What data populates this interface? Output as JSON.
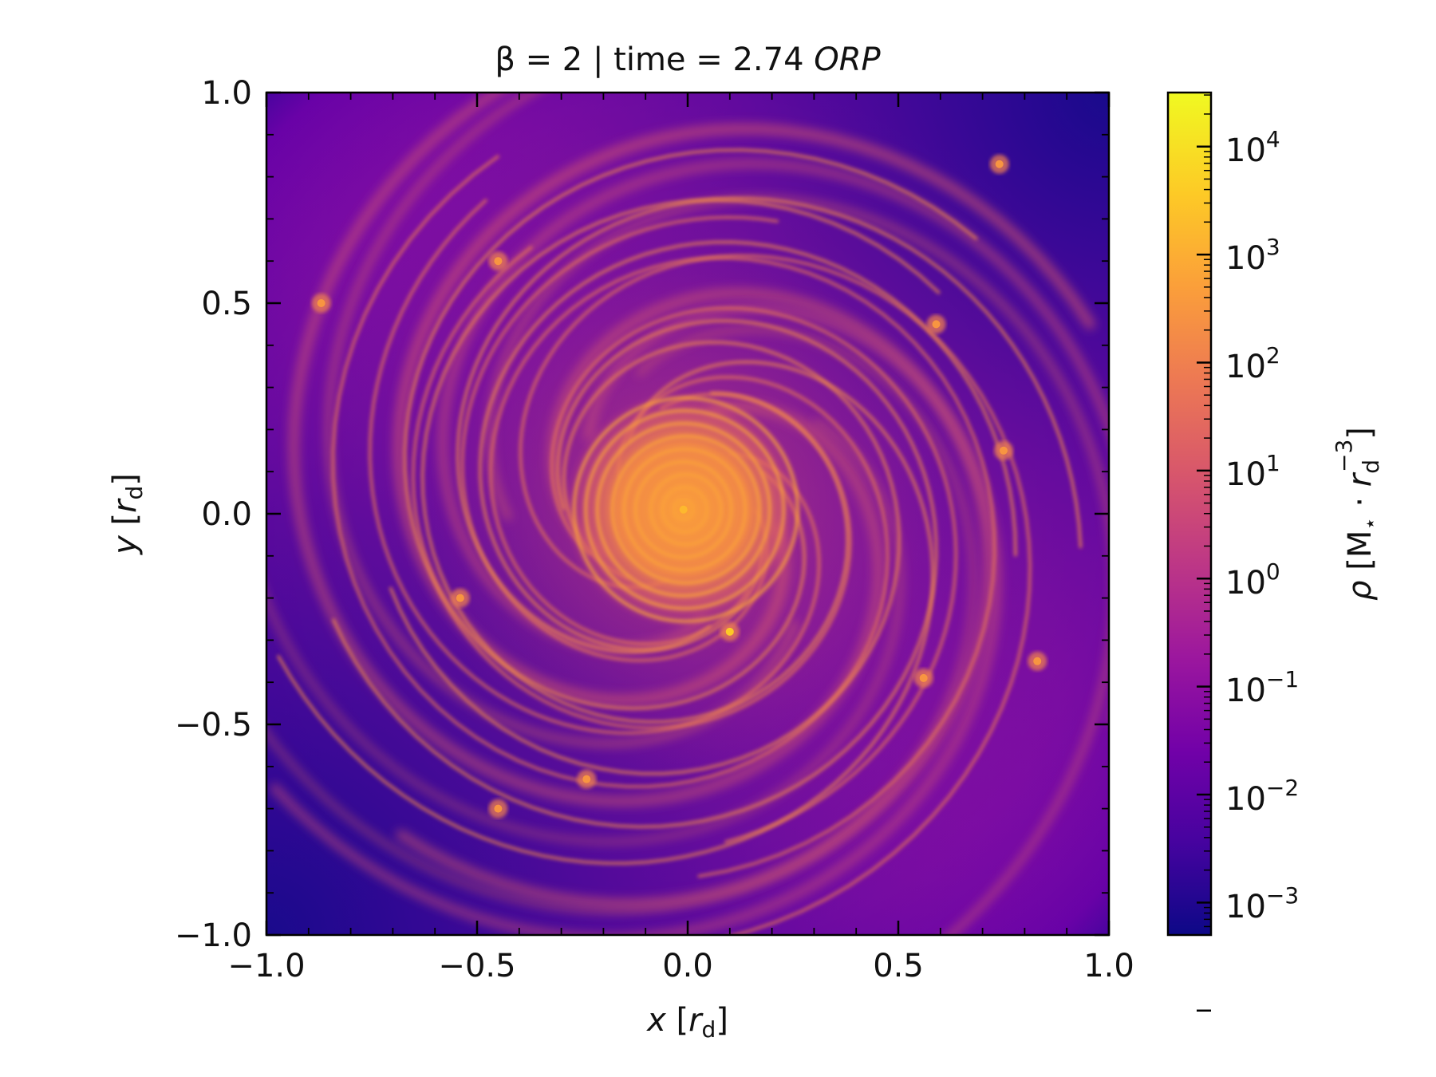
{
  "chart_data": {
    "type": "heatmap",
    "title": {
      "prefix": "β = 2 | time = 2.74 ",
      "italic": "ORP"
    },
    "xlabel": {
      "var": "x",
      "unit_open": " [",
      "unit_var": "r",
      "unit_sub": "d",
      "unit_close": "]"
    },
    "ylabel": {
      "var": "y",
      "unit_open": " [",
      "unit_var": "r",
      "unit_sub": "d",
      "unit_close": "]"
    },
    "xlim": [
      -1.0,
      1.0
    ],
    "ylim": [
      -1.0,
      1.0
    ],
    "xticks": [
      -1.0,
      -0.5,
      0.0,
      0.5,
      1.0
    ],
    "xtick_labels": [
      "−1.0",
      "−0.5",
      "0.0",
      "0.5",
      "1.0"
    ],
    "yticks": [
      -1.0,
      -0.5,
      0.0,
      0.5,
      1.0
    ],
    "ytick_labels": [
      "−1.0",
      "−0.5",
      "0.0",
      "0.5",
      "1.0"
    ],
    "colormap": "plasma",
    "colormap_stops": [
      "#0d0887",
      "#46039f",
      "#7201a8",
      "#9c179e",
      "#bd3786",
      "#d8576b",
      "#ed7953",
      "#fb9f3a",
      "#fdca26",
      "#f0f921"
    ],
    "colorbar": {
      "label": {
        "var": "ρ",
        "open": " [M",
        "star": "⋆",
        "dot": " · ",
        "r": "r",
        "sub": "d",
        "sup": "−3",
        "close": "]"
      },
      "scale": "log",
      "range_log10": [
        -3.3,
        4.5
      ],
      "ticks_log10": [
        -3,
        -2,
        -1,
        0,
        1,
        2,
        3,
        4
      ],
      "tick_labels": [
        {
          "base": "10",
          "exp": "−3"
        },
        {
          "base": "10",
          "exp": "−2"
        },
        {
          "base": "10",
          "exp": "−1"
        },
        {
          "base": "10",
          "exp": "0"
        },
        {
          "base": "10",
          "exp": "1"
        },
        {
          "base": "10",
          "exp": "2"
        },
        {
          "base": "10",
          "exp": "3"
        },
        {
          "base": "10",
          "exp": "4"
        }
      ]
    },
    "features": {
      "core_center": [
        -0.01,
        0.01
      ],
      "core_log10_density": 3.0,
      "background_log10_density": -1.6,
      "corner_log10_density": -3.0,
      "clumps": [
        [
          0.1,
          -0.28
        ],
        [
          0.75,
          0.15
        ],
        [
          0.83,
          -0.35
        ],
        [
          -0.87,
          0.5
        ],
        [
          0.74,
          0.83
        ],
        [
          -0.45,
          0.6
        ],
        [
          -0.45,
          -0.7
        ],
        [
          0.59,
          0.45
        ],
        [
          0.56,
          -0.39
        ],
        [
          -0.24,
          -0.63
        ],
        [
          -0.54,
          -0.2
        ]
      ]
    }
  }
}
